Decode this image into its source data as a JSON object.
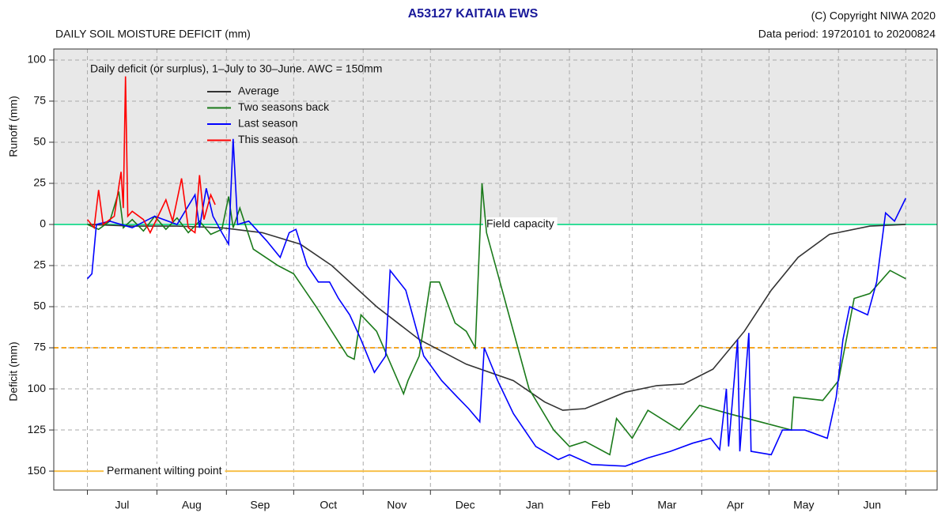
{
  "chart_data": {
    "type": "line",
    "title": "A53127  KAITAIA EWS",
    "subtitle": "DAILY SOIL MOISTURE DEFICIT (mm)",
    "copyright": "(C) Copyright NIWA  2020",
    "data_period": "Data period:  19720101  to  20200824",
    "annotation": "Daily deficit (or surplus), 1–July to 30–June.  AWC = 150mm",
    "y_label_top": "Runoff (mm)",
    "y_label_bottom": "Deficit (mm)",
    "categories": [
      "Jul",
      "Aug",
      "Sep",
      "Oct",
      "Nov",
      "Dec",
      "Jan",
      "Feb",
      "Mar",
      "Apr",
      "May",
      "Jun"
    ],
    "xlim": [
      -15,
      379
    ],
    "xticks": [
      0,
      31,
      62,
      92,
      123,
      153,
      184,
      215,
      243,
      274,
      304,
      335,
      365
    ],
    "ylim": [
      -161.5,
      106.7
    ],
    "yticks": [
      100,
      75,
      50,
      25,
      0,
      {
        "value": -25,
        "label": "25"
      },
      {
        "value": -50,
        "label": "50"
      },
      {
        "value": -75,
        "label": "75"
      },
      {
        "value": -100,
        "label": "100"
      },
      {
        "value": -125,
        "label": "125"
      },
      {
        "value": -150,
        "label": "150"
      }
    ],
    "grid": true,
    "shade_color": "#e8e8e8",
    "reference_lines": [
      {
        "value": 0,
        "label": "Field capacity",
        "color": "#33dd99",
        "style": "solid"
      },
      {
        "value": -75,
        "color": "#f5a623",
        "style": "dashed"
      },
      {
        "value": -150,
        "label": "Permanent wilting point",
        "color": "#f7c04a",
        "style": "solid"
      }
    ],
    "series": [
      {
        "name": "Average",
        "color": "#333333",
        "x": [
          0,
          20,
          40,
          60,
          78,
          95,
          109,
          129,
          148,
          169,
          190,
          204,
          212,
          222,
          240,
          254,
          266,
          279,
          293,
          305,
          317,
          331,
          349,
          365
        ],
        "values": [
          0,
          -1,
          -1,
          -2,
          -5,
          -12,
          -25,
          -50,
          -70,
          -85,
          -95,
          -108,
          -113,
          -112,
          -102,
          -98,
          -97,
          -88,
          -65,
          -40,
          -20,
          -6,
          -1,
          0
        ]
      },
      {
        "name": "Two seasons back",
        "color": "#1a7a1a",
        "x": [
          0,
          5,
          10,
          14,
          16,
          20,
          25,
          30,
          35,
          40,
          45,
          50,
          55,
          60,
          63,
          65,
          68,
          74,
          85,
          92,
          102,
          116,
          119,
          122,
          129,
          141,
          143,
          148,
          153,
          157,
          164,
          169,
          173,
          176,
          178,
          187,
          197,
          208,
          215,
          222,
          233,
          236,
          243,
          250,
          264,
          273,
          286,
          300,
          314,
          315,
          328,
          335,
          342,
          349,
          358,
          365
        ],
        "values": [
          0,
          -3,
          2,
          20,
          -2,
          3,
          -4,
          5,
          -3,
          4,
          -5,
          2,
          -6,
          -3,
          17,
          -2,
          10,
          -15,
          -25,
          -30,
          -50,
          -80,
          -82,
          -55,
          -65,
          -103,
          -95,
          -80,
          -35,
          -35,
          -60,
          -65,
          -75,
          25,
          -5,
          -50,
          -100,
          -125,
          -135,
          -132,
          -140,
          -118,
          -130,
          -113,
          -125,
          -110,
          -115,
          -120,
          -125,
          -105,
          -107,
          -95,
          -45,
          -42,
          -28,
          -33
        ]
      },
      {
        "name": "Last season",
        "color": "#0000ff",
        "x": [
          0,
          2,
          4,
          10,
          20,
          30,
          40,
          48,
          50,
          53,
          56,
          60,
          63,
          65,
          67,
          72,
          80,
          86,
          90,
          93,
          98,
          103,
          108,
          112,
          117,
          122,
          128,
          133,
          135,
          142,
          150,
          158,
          165,
          170,
          175,
          177,
          183,
          190,
          200,
          210,
          215,
          225,
          240,
          250,
          260,
          270,
          278,
          282,
          285,
          286,
          290,
          291,
          295,
          296,
          305,
          310,
          320,
          330,
          334,
          337,
          340,
          348,
          352,
          356,
          360,
          365
        ],
        "values": [
          -33,
          -30,
          0,
          2,
          -2,
          5,
          0,
          18,
          -2,
          22,
          5,
          -5,
          -12,
          52,
          0,
          2,
          -10,
          -20,
          -5,
          -3,
          -25,
          -35,
          -35,
          -45,
          -55,
          -70,
          -90,
          -80,
          -28,
          -40,
          -80,
          -95,
          -105,
          -112,
          -120,
          -75,
          -95,
          -115,
          -135,
          -143,
          -140,
          -146,
          -147,
          -142,
          -138,
          -133,
          -130,
          -137,
          -100,
          -135,
          -70,
          -138,
          -66,
          -138,
          -140,
          -125,
          -125,
          -130,
          -105,
          -70,
          -50,
          -55,
          -35,
          7,
          2,
          16
        ]
      },
      {
        "name": "This season",
        "color": "#ff0000",
        "x": [
          0,
          3,
          5,
          7,
          12,
          15,
          16,
          17,
          18,
          20,
          25,
          28,
          35,
          38,
          42,
          45,
          48,
          50,
          52,
          55,
          57
        ],
        "values": [
          3,
          -2,
          21,
          0,
          5,
          32,
          10,
          90,
          5,
          8,
          3,
          -5,
          15,
          2,
          28,
          -2,
          -5,
          30,
          3,
          18,
          12
        ]
      }
    ]
  }
}
